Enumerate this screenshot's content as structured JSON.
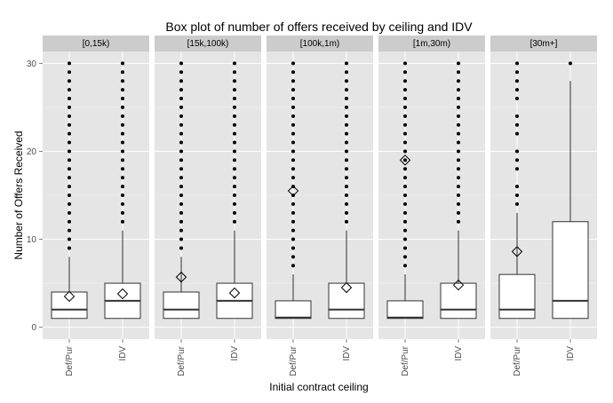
{
  "chart_data": {
    "type": "box",
    "title": "Box plot of number of offers received by ceiling and IDV",
    "xlabel": "Initial contract ceiling",
    "ylabel": "Number of Offers Received",
    "ylim": [
      0,
      30
    ],
    "yticks": [
      0,
      10,
      20,
      30
    ],
    "grid": true,
    "legend": "none",
    "categories": [
      "Def/Pur",
      "IDV"
    ],
    "panels": [
      {
        "label": "[0,15k)",
        "boxes": [
          {
            "category": "Def/Pur",
            "min": 1,
            "q1": 1,
            "median": 2,
            "q3": 4,
            "whisker_high": 8,
            "mean": 3.5,
            "outliers": [
              9,
              10,
              11,
              12,
              13,
              14,
              15,
              16,
              17,
              18,
              19,
              20,
              21,
              22,
              23,
              24,
              25,
              26,
              27,
              28,
              29,
              30
            ]
          },
          {
            "category": "IDV",
            "min": 1,
            "q1": 1,
            "median": 3,
            "q3": 5,
            "whisker_high": 11,
            "mean": 3.8,
            "outliers": [
              12,
              13,
              14,
              15,
              16,
              17,
              18,
              19,
              20,
              21,
              22,
              23,
              24,
              25,
              26,
              27,
              28,
              29,
              30
            ]
          }
        ]
      },
      {
        "label": "[15k,100k)",
        "boxes": [
          {
            "category": "Def/Pur",
            "min": 1,
            "q1": 1,
            "median": 2,
            "q3": 4,
            "whisker_high": 8,
            "mean": 5.7,
            "outliers": [
              9,
              10,
              11,
              12,
              13,
              14,
              15,
              16,
              17,
              18,
              19,
              20,
              21,
              22,
              23,
              24,
              25,
              26,
              27,
              28,
              29,
              30
            ]
          },
          {
            "category": "IDV",
            "min": 1,
            "q1": 1,
            "median": 3,
            "q3": 5,
            "whisker_high": 11,
            "mean": 3.9,
            "outliers": [
              12,
              13,
              14,
              15,
              16,
              17,
              18,
              19,
              20,
              21,
              22,
              23,
              24,
              25,
              26,
              27,
              28,
              29,
              30
            ]
          }
        ]
      },
      {
        "label": "[100k,1m)",
        "boxes": [
          {
            "category": "Def/Pur",
            "min": 1,
            "q1": 1,
            "median": 1.1,
            "q3": 3,
            "whisker_high": 6,
            "mean": 15.5,
            "outliers": [
              7,
              8,
              9,
              10,
              11,
              12,
              13,
              14,
              15,
              16,
              17,
              18,
              19,
              20,
              21,
              22,
              23,
              24,
              25,
              26,
              27,
              28,
              29,
              30
            ]
          },
          {
            "category": "IDV",
            "min": 1,
            "q1": 1,
            "median": 2,
            "q3": 5,
            "whisker_high": 11,
            "mean": 4.5,
            "outliers": [
              12,
              13,
              14,
              15,
              16,
              17,
              18,
              19,
              20,
              21,
              22,
              23,
              24,
              25,
              26,
              27,
              28,
              29,
              30
            ]
          }
        ]
      },
      {
        "label": "[1m,30m)",
        "boxes": [
          {
            "category": "Def/Pur",
            "min": 1,
            "q1": 1,
            "median": 1.1,
            "q3": 3,
            "whisker_high": 6,
            "mean": 19,
            "outliers": [
              7,
              8,
              9,
              10,
              11,
              12,
              13,
              14,
              15,
              16,
              17,
              18,
              19,
              20,
              21,
              22,
              23,
              24,
              25,
              26,
              27,
              28,
              29,
              30
            ]
          },
          {
            "category": "IDV",
            "min": 1,
            "q1": 1,
            "median": 2,
            "q3": 5,
            "whisker_high": 11,
            "mean": 4.8,
            "outliers": [
              12,
              13,
              14,
              15,
              16,
              17,
              18,
              19,
              20,
              21,
              22,
              23,
              24,
              25,
              26,
              27,
              28,
              29,
              30
            ]
          }
        ]
      },
      {
        "label": "[30m+]",
        "boxes": [
          {
            "category": "Def/Pur",
            "min": 1,
            "q1": 1,
            "median": 2,
            "q3": 6,
            "whisker_high": 13,
            "mean": 8.6,
            "outliers": [
              14,
              15,
              16,
              18,
              19,
              20,
              22,
              23,
              24,
              26,
              27,
              28,
              29,
              30
            ]
          },
          {
            "category": "IDV",
            "min": 1,
            "q1": 1,
            "median": 3,
            "q3": 12,
            "whisker_high": 28,
            "mean": null,
            "outliers": [
              30
            ]
          }
        ]
      }
    ]
  },
  "colors": {
    "panel_bg": "#e5e5e5",
    "grid": "#ffffff",
    "strip_bg": "#cccccc",
    "box_fill": "#ffffff",
    "stroke": "#333333",
    "point": "#000000"
  }
}
